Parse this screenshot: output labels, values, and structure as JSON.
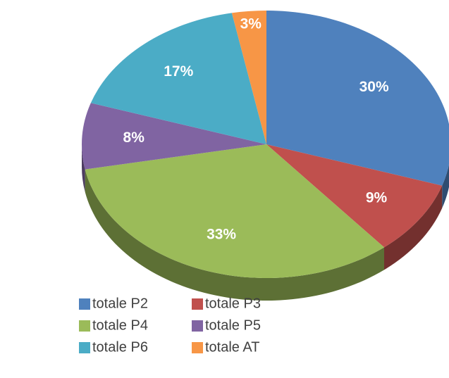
{
  "chart_data": {
    "type": "pie",
    "categories": [
      "totale P2",
      "totale P3",
      "totale P4",
      "totale P5",
      "totale P6",
      "totale AT"
    ],
    "values": [
      30,
      9,
      33,
      8,
      17,
      3
    ],
    "value_labels": [
      "30%",
      "9%",
      "33%",
      "8%",
      "17%",
      "3%"
    ],
    "colors": [
      "#4f81bd",
      "#c0504d",
      "#9bbb59",
      "#8064a2",
      "#4bacc6",
      "#f79646"
    ],
    "legend": "bottom"
  }
}
